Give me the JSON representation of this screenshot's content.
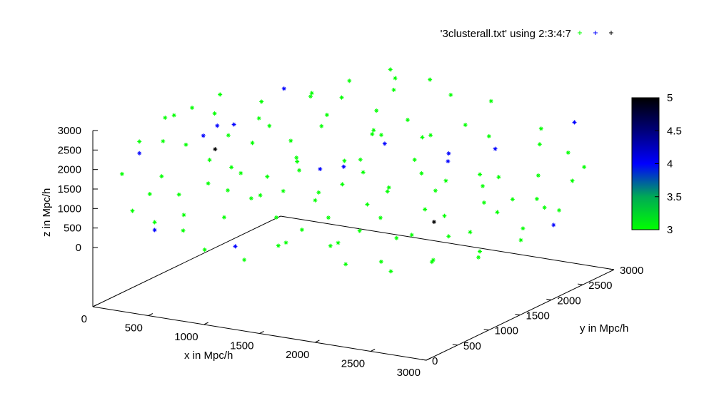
{
  "chart_data": {
    "type": "scatter",
    "dimensions": 3,
    "legend_text": "'3clusterall.txt' using 2:3:4:7",
    "legend_position": "top-right",
    "legend_colors": [
      "#00ff00",
      "#0000ff",
      "#000000"
    ],
    "xlabel": "x in Mpc/h",
    "ylabel": "y in Mpc/h",
    "zlabel": "z in Mpc/h",
    "xlim": [
      0,
      3000
    ],
    "ylim": [
      0,
      3000
    ],
    "zlim": [
      0,
      3000
    ],
    "x_ticks": [
      "0",
      "500",
      "1000",
      "1500",
      "2000",
      "2500",
      "3000"
    ],
    "y_ticks": [
      "0",
      "500",
      "1000",
      "1500",
      "2000",
      "2500",
      "3000"
    ],
    "z_ticks": [
      "0",
      "500",
      "1000",
      "1500",
      "2000",
      "2500",
      "3000"
    ],
    "colorbar": {
      "range": [
        3,
        5
      ],
      "ticks": [
        "3",
        "3.5",
        "4",
        "4.5",
        "5"
      ],
      "colors": [
        "#00ff00",
        "#00aa55",
        "#0000ff",
        "#00007a",
        "#000000"
      ]
    },
    "points": [
      {
        "x": 330,
        "y": 1000,
        "z": 2960,
        "c": 3
      },
      {
        "x": 720,
        "y": 2200,
        "z": 2500,
        "c": 3
      },
      {
        "x": 560,
        "y": 1700,
        "z": 2680,
        "c": 3
      },
      {
        "x": 280,
        "y": 800,
        "z": 2900,
        "c": 3
      },
      {
        "x": 900,
        "y": 2500,
        "z": 2750,
        "c": 3
      },
      {
        "x": 1100,
        "y": 2800,
        "z": 2900,
        "c": 3
      },
      {
        "x": 650,
        "y": 1500,
        "z": 2450,
        "c": 3
      },
      {
        "x": 420,
        "y": 1200,
        "z": 2700,
        "c": 3
      },
      {
        "x": 980,
        "y": 2000,
        "z": 2300,
        "c": 3
      },
      {
        "x": 1200,
        "y": 2400,
        "z": 2200,
        "c": 3
      },
      {
        "x": 760,
        "y": 1200,
        "z": 2100,
        "c": 3
      },
      {
        "x": 500,
        "y": 600,
        "z": 2400,
        "c": 3
      },
      {
        "x": 880,
        "y": 1600,
        "z": 1900,
        "c": 3
      },
      {
        "x": 1300,
        "y": 2300,
        "z": 1700,
        "c": 3
      },
      {
        "x": 1500,
        "y": 2600,
        "z": 1500,
        "c": 3
      },
      {
        "x": 600,
        "y": 800,
        "z": 1900,
        "c": 3
      },
      {
        "x": 740,
        "y": 900,
        "z": 1700,
        "c": 3
      },
      {
        "x": 1050,
        "y": 1400,
        "z": 1600,
        "c": 3
      },
      {
        "x": 1250,
        "y": 1800,
        "z": 1400,
        "c": 3
      },
      {
        "x": 1600,
        "y": 2300,
        "z": 1200,
        "c": 3
      },
      {
        "x": 450,
        "y": 300,
        "z": 1800,
        "c": 3
      },
      {
        "x": 550,
        "y": 400,
        "z": 1300,
        "c": 3
      },
      {
        "x": 820,
        "y": 700,
        "z": 1300,
        "c": 3
      },
      {
        "x": 1000,
        "y": 900,
        "z": 1100,
        "c": 3
      },
      {
        "x": 1300,
        "y": 1300,
        "z": 1000,
        "c": 3
      },
      {
        "x": 1650,
        "y": 1800,
        "z": 900,
        "c": 3
      },
      {
        "x": 1900,
        "y": 2100,
        "z": 700,
        "c": 3
      },
      {
        "x": 2100,
        "y": 2500,
        "z": 600,
        "c": 3
      },
      {
        "x": 650,
        "y": 300,
        "z": 900,
        "c": 3
      },
      {
        "x": 900,
        "y": 500,
        "z": 800,
        "c": 3
      },
      {
        "x": 1200,
        "y": 800,
        "z": 700,
        "c": 3
      },
      {
        "x": 1500,
        "y": 1100,
        "z": 600,
        "c": 3
      },
      {
        "x": 1800,
        "y": 1400,
        "z": 500,
        "c": 3
      },
      {
        "x": 2150,
        "y": 1800,
        "z": 400,
        "c": 3
      },
      {
        "x": 2400,
        "y": 2200,
        "z": 300,
        "c": 3
      },
      {
        "x": 2600,
        "y": 2600,
        "z": 200,
        "c": 3
      },
      {
        "x": 1400,
        "y": 600,
        "z": 300,
        "c": 3
      },
      {
        "x": 1700,
        "y": 900,
        "z": 200,
        "c": 3
      },
      {
        "x": 2000,
        "y": 1300,
        "z": 150,
        "c": 3
      },
      {
        "x": 2300,
        "y": 1600,
        "z": 100,
        "c": 3
      },
      {
        "x": 1200,
        "y": 400,
        "z": 1500,
        "c": 3
      },
      {
        "x": 1550,
        "y": 800,
        "z": 1300,
        "c": 3
      },
      {
        "x": 1850,
        "y": 1100,
        "z": 1100,
        "c": 3
      },
      {
        "x": 2200,
        "y": 1400,
        "z": 900,
        "c": 3
      },
      {
        "x": 2450,
        "y": 1900,
        "z": 800,
        "c": 3
      },
      {
        "x": 2700,
        "y": 2300,
        "z": 700,
        "c": 3
      },
      {
        "x": 1050,
        "y": 500,
        "z": 2000,
        "c": 3
      },
      {
        "x": 1350,
        "y": 900,
        "z": 1900,
        "c": 3
      },
      {
        "x": 1700,
        "y": 1300,
        "z": 1700,
        "c": 3
      },
      {
        "x": 2000,
        "y": 1700,
        "z": 1500,
        "c": 3
      },
      {
        "x": 2300,
        "y": 2100,
        "z": 1300,
        "c": 3
      },
      {
        "x": 2600,
        "y": 2500,
        "z": 1100,
        "c": 3
      },
      {
        "x": 1500,
        "y": 1800,
        "z": 2200,
        "c": 3
      },
      {
        "x": 1800,
        "y": 2200,
        "z": 2000,
        "c": 3
      },
      {
        "x": 2100,
        "y": 2600,
        "z": 1800,
        "c": 3
      },
      {
        "x": 1700,
        "y": 2700,
        "z": 2600,
        "c": 3
      },
      {
        "x": 1950,
        "y": 2900,
        "z": 2400,
        "c": 3
      },
      {
        "x": 2400,
        "y": 2900,
        "z": 1900,
        "c": 3
      },
      {
        "x": 2700,
        "y": 2800,
        "z": 1500,
        "c": 3
      },
      {
        "x": 2850,
        "y": 2600,
        "z": 1000,
        "c": 3
      },
      {
        "x": 900,
        "y": 1900,
        "z": 2900,
        "c": 3
      },
      {
        "x": 1300,
        "y": 2500,
        "z": 2700,
        "c": 3
      },
      {
        "x": 350,
        "y": 500,
        "z": 2500,
        "c": 3
      },
      {
        "x": 400,
        "y": 200,
        "z": 1400,
        "c": 3
      },
      {
        "x": 700,
        "y": 200,
        "z": 600,
        "c": 3
      },
      {
        "x": 950,
        "y": 100,
        "z": 300,
        "c": 3
      },
      {
        "x": 1250,
        "y": 200,
        "z": 100,
        "c": 3
      },
      {
        "x": 500,
        "y": 100,
        "z": 800,
        "c": 3
      },
      {
        "x": 1600,
        "y": 500,
        "z": 800,
        "c": 3
      },
      {
        "x": 1950,
        "y": 800,
        "z": 700,
        "c": 3
      },
      {
        "x": 2250,
        "y": 1100,
        "z": 500,
        "c": 3
      },
      {
        "x": 2550,
        "y": 1500,
        "z": 400,
        "c": 3
      },
      {
        "x": 2800,
        "y": 1900,
        "z": 300,
        "c": 3
      },
      {
        "x": 2900,
        "y": 2300,
        "z": 500,
        "c": 3
      },
      {
        "x": 2200,
        "y": 700,
        "z": 100,
        "c": 3
      },
      {
        "x": 2500,
        "y": 1000,
        "z": 50,
        "c": 3
      },
      {
        "x": 2750,
        "y": 1300,
        "z": 150,
        "c": 3
      },
      {
        "x": 600,
        "y": 1100,
        "z": 2300,
        "c": 3
      },
      {
        "x": 800,
        "y": 1400,
        "z": 2400,
        "c": 3
      },
      {
        "x": 1100,
        "y": 1700,
        "z": 2300,
        "c": 3
      },
      {
        "x": 1400,
        "y": 2000,
        "z": 2100,
        "c": 3
      },
      {
        "x": 1000,
        "y": 2200,
        "z": 2600,
        "c": 3
      },
      {
        "x": 1200,
        "y": 2700,
        "z": 2800,
        "c": 3
      },
      {
        "x": 1400,
        "y": 2900,
        "z": 2700,
        "c": 3
      },
      {
        "x": 300,
        "y": 1500,
        "z": 2900,
        "c": 3
      },
      {
        "x": 200,
        "y": 800,
        "z": 2800,
        "c": 3
      },
      {
        "x": 250,
        "y": 300,
        "z": 2600,
        "c": 3
      },
      {
        "x": 150,
        "y": 200,
        "z": 1800,
        "c": 3
      },
      {
        "x": 300,
        "y": 100,
        "z": 1000,
        "c": 3
      },
      {
        "x": 1800,
        "y": 600,
        "z": 400,
        "c": 3
      },
      {
        "x": 2050,
        "y": 400,
        "z": 200,
        "c": 3
      },
      {
        "x": 1500,
        "y": 300,
        "z": 500,
        "c": 3
      },
      {
        "x": 2600,
        "y": 800,
        "z": 200,
        "c": 3
      },
      {
        "x": 2400,
        "y": 500,
        "z": 100,
        "c": 3
      },
      {
        "x": 2850,
        "y": 1100,
        "z": 200,
        "c": 3
      },
      {
        "x": 2950,
        "y": 1600,
        "z": 300,
        "c": 3
      },
      {
        "x": 2650,
        "y": 2000,
        "z": 900,
        "c": 3
      },
      {
        "x": 2900,
        "y": 2700,
        "z": 1300,
        "c": 3
      },
      {
        "x": 2500,
        "y": 2700,
        "z": 1700,
        "c": 3
      },
      {
        "x": 2000,
        "y": 2400,
        "z": 2200,
        "c": 3
      },
      {
        "x": 1650,
        "y": 2100,
        "z": 2400,
        "c": 3
      },
      {
        "x": 700,
        "y": 600,
        "z": 1500,
        "c": 3
      },
      {
        "x": 950,
        "y": 1100,
        "z": 1400,
        "c": 3
      },
      {
        "x": 1150,
        "y": 1000,
        "z": 1200,
        "c": 3
      },
      {
        "x": 1400,
        "y": 1500,
        "z": 1100,
        "c": 3
      },
      {
        "x": 1750,
        "y": 1600,
        "z": 1000,
        "c": 3
      },
      {
        "x": 2050,
        "y": 2000,
        "z": 1100,
        "c": 3
      },
      {
        "x": 2300,
        "y": 2400,
        "z": 1000,
        "c": 3
      },
      {
        "x": 1100,
        "y": 1300,
        "z": 1800,
        "c": 3
      },
      {
        "x": 1450,
        "y": 1700,
        "z": 1600,
        "c": 3
      },
      {
        "x": 650,
        "y": 1900,
        "z": 2900,
        "c": 4
      },
      {
        "x": 250,
        "y": 300,
        "z": 2300,
        "c": 4
      },
      {
        "x": 500,
        "y": 1100,
        "z": 2500,
        "c": 4
      },
      {
        "x": 1200,
        "y": 1500,
        "z": 1400,
        "c": 4
      },
      {
        "x": 1300,
        "y": 1700,
        "z": 1350,
        "c": 4
      },
      {
        "x": 1500,
        "y": 2000,
        "z": 1800,
        "c": 4
      },
      {
        "x": 1900,
        "y": 2300,
        "z": 1300,
        "c": 4
      },
      {
        "x": 2700,
        "y": 2900,
        "z": 2200,
        "c": 4
      },
      {
        "x": 500,
        "y": 100,
        "z": 600,
        "c": 4
      },
      {
        "x": 1000,
        "y": 500,
        "z": 100,
        "c": 4
      },
      {
        "x": 2850,
        "y": 2300,
        "z": 100,
        "c": 4
      },
      {
        "x": 650,
        "y": 1100,
        "z": 2600,
        "c": 4
      },
      {
        "x": 1850,
        "y": 2400,
        "z": 1400,
        "c": 4
      },
      {
        "x": 2100,
        "y": 2700,
        "z": 1400,
        "c": 4
      },
      {
        "x": 600,
        "y": 700,
        "z": 2600,
        "c": 4
      },
      {
        "x": 650,
        "y": 800,
        "z": 2200,
        "c": 5
      },
      {
        "x": 2000,
        "y": 1900,
        "z": 100,
        "c": 5
      }
    ]
  }
}
